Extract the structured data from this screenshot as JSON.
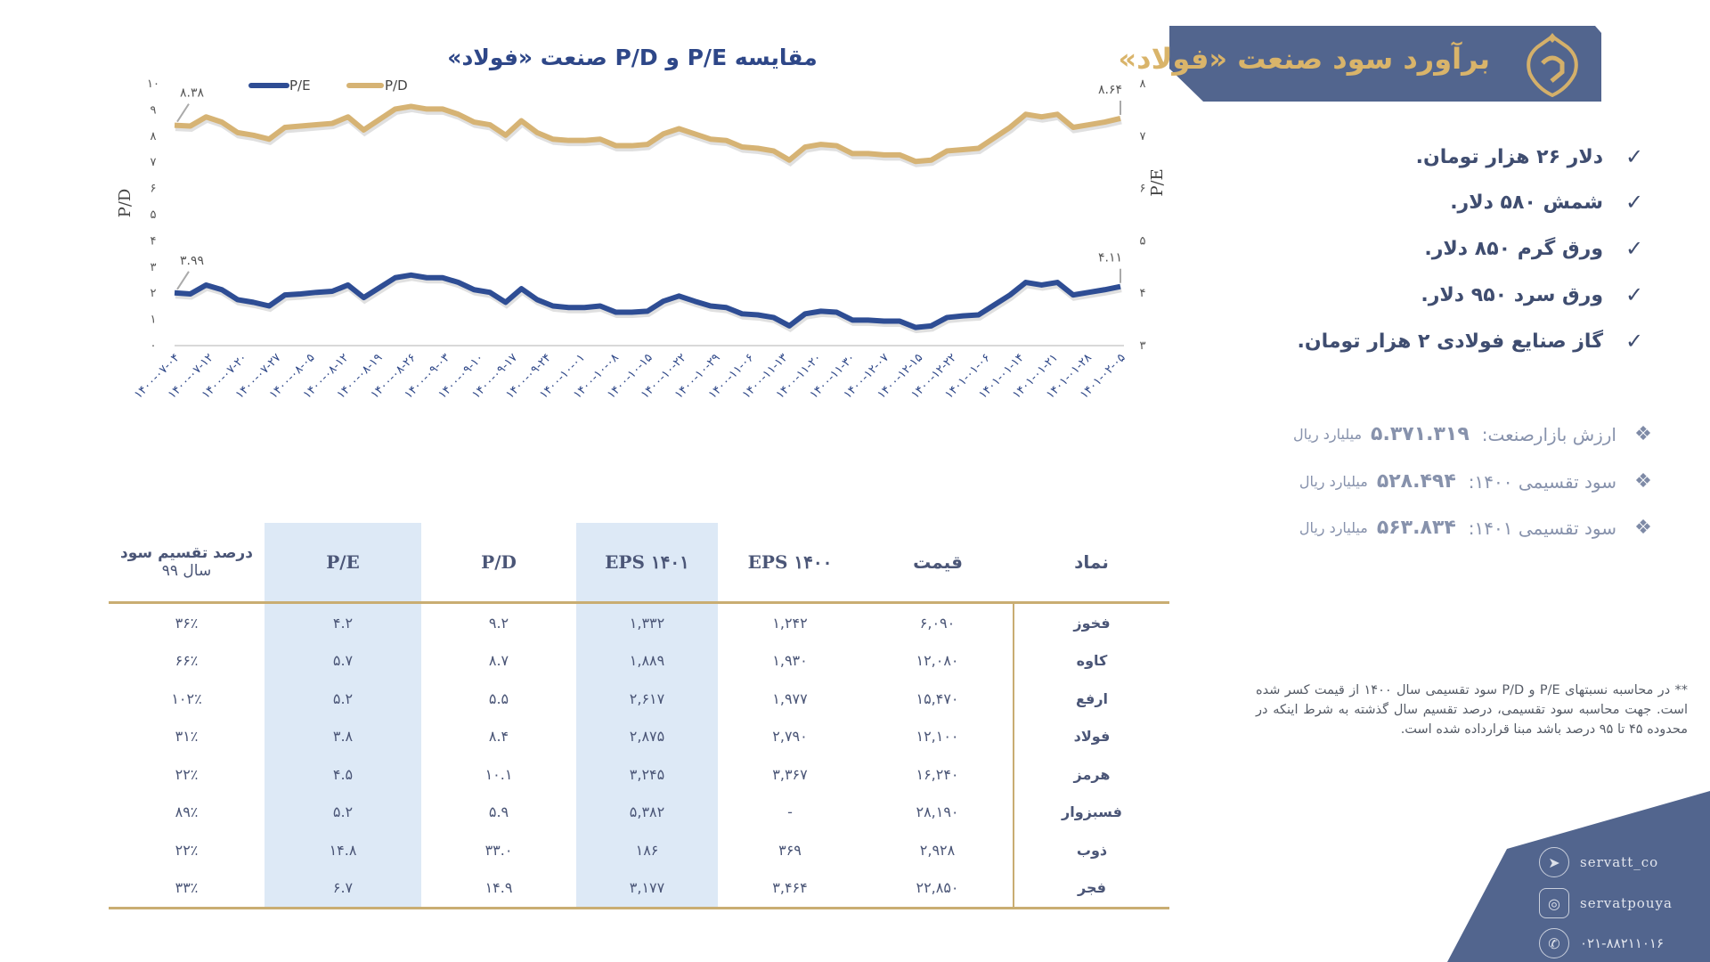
{
  "banner": {
    "title": "برآورد سود صنعت «فولاد»",
    "logo": "servat logo"
  },
  "assumptions": [
    "دلار ۲۶ هزار تومان.",
    "شمش ۵۸۰ دلار.",
    "ورق گرم ۸۵۰ دلار.",
    "ورق سرد ۹۵۰ دلار.",
    "گاز صنایع فولادی ۲ هزار تومان."
  ],
  "metrics": [
    {
      "label": "ارزش بازارصنعت:",
      "value": "۵.۳۷۱.۳۱۹",
      "unit": "میلیارد ریال"
    },
    {
      "label": "سود تقسیمی ۱۴۰۰:",
      "value": "۵۲۸.۴۹۴",
      "unit": "میلیارد ریال"
    },
    {
      "label": "سود تقسیمی ۱۴۰۱:",
      "value": "۵۶۳.۸۳۴",
      "unit": "میلیارد ریال"
    }
  ],
  "footnote": "** در محاسبه نسبتهای P/E و P/D سود تقسیمی سال ۱۴۰۰ از قیمت کسر شده است. جهت محاسبه سود تقسیمی، درصد تقسیم سال گذشته به شرط اینکه در محدوده ۴۵ تا ۹۵ درصد باشد مبنا قرارداده شده است.",
  "social": {
    "telegram": "servatt_co",
    "instagram": "servatpouya",
    "phone": "۰۲۱-۸۸۲۱۱۰۱۶"
  },
  "colors": {
    "navy": "#52658e",
    "gold": "#d4b06a",
    "pe_line": "#2e4d94",
    "pd_line": "#d6b374",
    "band": "#dde9f6"
  },
  "table": {
    "headers": {
      "symbol": "نماد",
      "price": "قیمت",
      "eps1400": "EPS ۱۴۰۰",
      "eps1401": "EPS ۱۴۰۱",
      "pd": "P/D",
      "pe": "P/E",
      "payout_line1": "درصد تقسیم سود",
      "payout_line2": "سال ۹۹"
    },
    "rows": [
      {
        "symbol": "فخوز",
        "price": "۶,۰۹۰",
        "eps1400": "۱,۲۴۲",
        "eps1401": "۱,۳۳۲",
        "pd": "۹.۲",
        "pe": "۴.۲",
        "payout": "۳۶٪"
      },
      {
        "symbol": "کاوه",
        "price": "۱۲,۰۸۰",
        "eps1400": "۱,۹۳۰",
        "eps1401": "۱,۸۸۹",
        "pd": "۸.۷",
        "pe": "۵.۷",
        "payout": "۶۶٪"
      },
      {
        "symbol": "ارفع",
        "price": "۱۵,۴۷۰",
        "eps1400": "۱,۹۷۷",
        "eps1401": "۲,۶۱۷",
        "pd": "۵.۵",
        "pe": "۵.۲",
        "payout": "۱۰۲٪"
      },
      {
        "symbol": "فولاد",
        "price": "۱۲,۱۰۰",
        "eps1400": "۲,۷۹۰",
        "eps1401": "۲,۸۷۵",
        "pd": "۸.۴",
        "pe": "۳.۸",
        "payout": "۳۱٪"
      },
      {
        "symbol": "هرمز",
        "price": "۱۶,۲۴۰",
        "eps1400": "۳,۳۶۷",
        "eps1401": "۳,۲۴۵",
        "pd": "۱۰.۱",
        "pe": "۴.۵",
        "payout": "۲۲٪"
      },
      {
        "symbol": "فسبزوار",
        "price": "۲۸,۱۹۰",
        "eps1400": "-",
        "eps1401": "۵,۳۸۲",
        "pd": "۵.۹",
        "pe": "۵.۲",
        "payout": "۸۹٪"
      },
      {
        "symbol": "ذوب",
        "price": "۲,۹۲۸",
        "eps1400": "۳۶۹",
        "eps1401": "۱۸۶",
        "pd": "۳۳.۰",
        "pe": "۱۴.۸",
        "payout": "۲۲٪"
      },
      {
        "symbol": "فجر",
        "price": "۲۲,۸۵۰",
        "eps1400": "۳,۴۶۴",
        "eps1401": "۳,۱۷۷",
        "pd": "۱۴.۹",
        "pe": "۶.۷",
        "payout": "۳۳٪"
      }
    ]
  },
  "chart_data": {
    "type": "line",
    "title": "مقایسه P/E و P/D صنعت «فولاد»",
    "ylabel_left": "P/D",
    "ylabel_right": "P/E",
    "ylim_left": [
      0,
      10
    ],
    "ylim_right": [
      3,
      8
    ],
    "yticks_left": [
      "۰",
      "۱",
      "۲",
      "۳",
      "۴",
      "۵",
      "۶",
      "۷",
      "۸",
      "۹",
      "۱۰"
    ],
    "yticks_right": [
      "۳",
      "۴",
      "۵",
      "۶",
      "۷",
      "۸"
    ],
    "grid": false,
    "legend": "top-left",
    "x_ticks": [
      "۱۴۰۰-۰۷-۰۴",
      "۱۴۰۰-۰۷-۱۲",
      "۱۴۰۰-۰۷-۲۰",
      "۱۴۰۰-۰۷-۲۷",
      "۱۴۰۰-۰۸-۰۵",
      "۱۴۰۰-۰۸-۱۲",
      "۱۴۰۰-۰۸-۱۹",
      "۱۴۰۰-۰۸-۲۶",
      "۱۴۰۰-۰۹-۰۳",
      "۱۴۰۰-۰۹-۱۰",
      "۱۴۰۰-۰۹-۱۷",
      "۱۴۰۰-۰۹-۲۴",
      "۱۴۰۰-۱۰-۰۱",
      "۱۴۰۰-۱۰-۰۸",
      "۱۴۰۰-۱۰-۱۵",
      "۱۴۰۰-۱۰-۲۲",
      "۱۴۰۰-۱۰-۲۹",
      "۱۴۰۰-۱۱-۰۶",
      "۱۴۰۰-۱۱-۱۳",
      "۱۴۰۰-۱۱-۲۰",
      "۱۴۰۰-۱۱-۳۰",
      "۱۴۰۰-۱۲-۰۷",
      "۱۴۰۰-۱۲-۱۵",
      "۱۴۰۰-۱۲-۲۲",
      "۱۴۰۱-۰۱-۰۶",
      "۱۴۰۱-۰۱-۱۴",
      "۱۴۰۱-۰۱-۲۱",
      "۱۴۰۱-۰۱-۲۸",
      "۱۴۰۱-۰۲-۰۵"
    ],
    "series": [
      {
        "name": "P/E",
        "axis": "right",
        "color": "#2e4d94",
        "values": [
          3.99,
          3.97,
          4.14,
          4.05,
          3.86,
          3.81,
          3.74,
          3.95,
          3.97,
          4.0,
          4.02,
          4.14,
          3.9,
          4.09,
          4.28,
          4.33,
          4.28,
          4.28,
          4.19,
          4.05,
          4.0,
          3.81,
          4.07,
          3.86,
          3.74,
          3.71,
          3.71,
          3.74,
          3.62,
          3.62,
          3.64,
          3.83,
          3.93,
          3.83,
          3.74,
          3.71,
          3.59,
          3.57,
          3.52,
          3.36,
          3.59,
          3.64,
          3.62,
          3.47,
          3.47,
          3.45,
          3.45,
          3.33,
          3.36,
          3.52,
          3.55,
          3.57,
          3.76,
          3.95,
          4.19,
          4.14,
          4.19,
          3.95,
          4.0,
          4.05,
          4.11
        ],
        "first_label": "۳.۹۹",
        "last_label": "۴.۱۱"
      },
      {
        "name": "P/D",
        "axis": "left",
        "color": "#d6b374",
        "values": [
          8.38,
          8.35,
          8.7,
          8.5,
          8.1,
          8.0,
          7.85,
          8.3,
          8.35,
          8.4,
          8.45,
          8.7,
          8.2,
          8.6,
          9.0,
          9.1,
          9.0,
          9.0,
          8.8,
          8.5,
          8.4,
          8.0,
          8.55,
          8.1,
          7.85,
          7.8,
          7.8,
          7.85,
          7.6,
          7.6,
          7.65,
          8.05,
          8.25,
          8.05,
          7.85,
          7.8,
          7.55,
          7.5,
          7.4,
          7.05,
          7.55,
          7.65,
          7.6,
          7.3,
          7.3,
          7.25,
          7.25,
          7.0,
          7.05,
          7.4,
          7.45,
          7.5,
          7.9,
          8.3,
          8.8,
          8.7,
          8.8,
          8.3,
          8.4,
          8.5,
          8.64
        ],
        "first_label": "۸.۳۸",
        "last_label": "۸.۶۴"
      }
    ]
  }
}
